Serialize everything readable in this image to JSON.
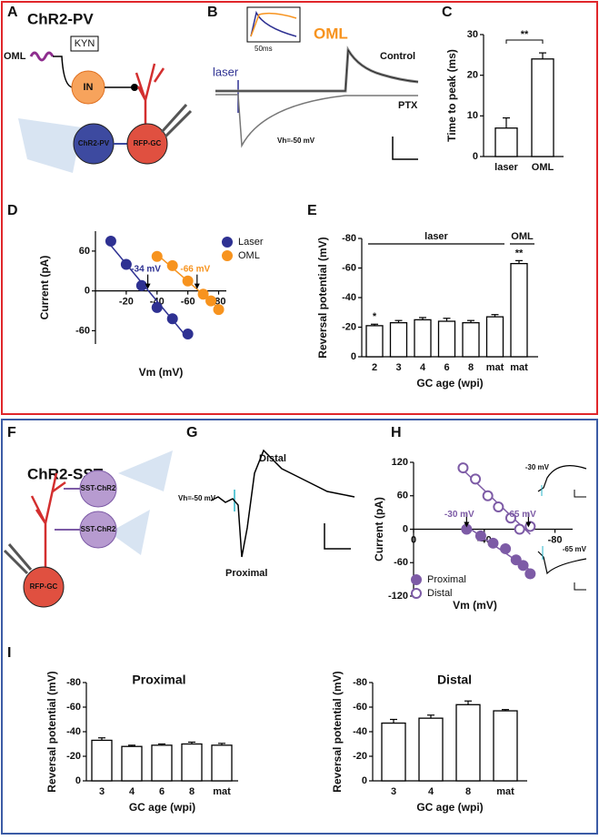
{
  "panel_labels": [
    "A",
    "B",
    "C",
    "D",
    "E",
    "F",
    "G",
    "H",
    "I"
  ],
  "diagram_a": {
    "title": "ChR2-PV",
    "oml": "OML",
    "kyn": "KYN",
    "in": "IN",
    "chr2": "ChR2-PV",
    "gc": "RFP-GC"
  },
  "trace_b": {
    "laser": "laser",
    "oml": "OML",
    "inset_scale": "50ms",
    "control": "Control",
    "ptx": "PTX",
    "vh": "Vh=-50 mV"
  },
  "diagram_f": {
    "title": "ChR2-SST",
    "sst_top": "SST-ChR2",
    "sst_bottom": "SST-ChR2",
    "gc": "RFP-GC"
  },
  "trace_g": {
    "distal": "Distal",
    "proximal": "Proximal",
    "vh": "Vh=-50 mV"
  },
  "chart_data": [
    {
      "type": "bar",
      "ylabel": "Time to peak (ms)",
      "categories": [
        "laser",
        "OML"
      ],
      "values": [
        7,
        24
      ],
      "errors": [
        2.5,
        1.5
      ],
      "ylim": [
        0,
        30
      ],
      "yticks": [
        0,
        10,
        20,
        30
      ],
      "annotations": [
        "**"
      ]
    },
    {
      "type": "scatter",
      "xlabel": "Vm (mV)",
      "ylabel": "Current (pA)",
      "xlim": [
        0,
        -85
      ],
      "xticks": [
        -20,
        -40,
        -60,
        -80
      ],
      "ylim": [
        -80,
        90
      ],
      "yticks": [
        60,
        0,
        -60
      ],
      "series": [
        {
          "name": "Laser",
          "color": "#2e3192",
          "marker": "filled",
          "x": [
            -10,
            -20,
            -30,
            -40,
            -50,
            -60
          ],
          "values": [
            75,
            40,
            8,
            -25,
            -42,
            -65
          ]
        },
        {
          "name": "OML",
          "color": "#f7931e",
          "marker": "filled",
          "x": [
            -40,
            -50,
            -60,
            -70,
            -75,
            -80
          ],
          "values": [
            52,
            38,
            15,
            -5,
            -15,
            -28
          ]
        }
      ],
      "annotations": [
        {
          "value": -34,
          "label": "-34 mV"
        },
        {
          "value": -66,
          "label": "-66 mV"
        }
      ]
    },
    {
      "type": "bar",
      "ylabel": "Reversal potential (mV)",
      "xlabel": "GC age (wpi)",
      "categories": [
        "2",
        "3",
        "4",
        "6",
        "8",
        "mat",
        "mat"
      ],
      "values": [
        -21,
        -23,
        -25,
        -24,
        -23,
        -27,
        -63
      ],
      "errors": [
        1,
        1.5,
        1.5,
        2,
        1.5,
        1.5,
        2
      ],
      "ylim": [
        0,
        -80
      ],
      "yticks": [
        0,
        -20,
        -40,
        -60,
        -80
      ],
      "groups": [
        "laser",
        "OML"
      ],
      "annotations": [
        "*",
        "**"
      ]
    },
    {
      "type": "scatter",
      "xlabel": "Vm (mV)",
      "ylabel": "Current (pA)",
      "xlim": [
        0,
        -90
      ],
      "xticks": [
        0,
        -40,
        -80
      ],
      "ylim": [
        -120,
        120
      ],
      "yticks": [
        120,
        60,
        0,
        -60,
        -120
      ],
      "series": [
        {
          "name": "Proximal",
          "color": "#7d5ba6",
          "marker": "filled",
          "x": [
            -30,
            -38,
            -45,
            -52,
            -58,
            -62,
            -66
          ],
          "values": [
            0,
            -12,
            -25,
            -35,
            -55,
            -65,
            -80
          ]
        },
        {
          "name": "Distal",
          "color": "#7d5ba6",
          "marker": "open",
          "x": [
            -28,
            -35,
            -42,
            -48,
            -55,
            -60,
            -66
          ],
          "values": [
            110,
            90,
            60,
            40,
            20,
            0,
            5
          ]
        }
      ],
      "annotations": [
        {
          "value": -30,
          "label": "-30 mV"
        },
        {
          "value": -65,
          "label": "-65 mV"
        }
      ],
      "inset_labels": [
        "-30 mV",
        "-65 mV"
      ]
    },
    {
      "type": "bar",
      "title": "Proximal",
      "ylabel": "Reversal potential (mV)",
      "xlabel": "GC age (wpi)",
      "categories": [
        "3",
        "4",
        "6",
        "8",
        "mat"
      ],
      "values": [
        -33,
        -28,
        -29,
        -30,
        -29
      ],
      "errors": [
        2,
        1,
        1,
        1.5,
        1.5
      ],
      "ylim": [
        0,
        -80
      ],
      "yticks": [
        0,
        -20,
        -40,
        -60,
        -80
      ]
    },
    {
      "type": "bar",
      "title": "Distal",
      "ylabel": "Reversal potential (mV)",
      "xlabel": "GC age (wpi)",
      "categories": [
        "3",
        "4",
        "8",
        "mat"
      ],
      "values": [
        -47,
        -51,
        -62,
        -57
      ],
      "errors": [
        3,
        2.5,
        3,
        1
      ],
      "ylim": [
        0,
        -80
      ],
      "yticks": [
        0,
        -20,
        -40,
        -60,
        -80
      ]
    }
  ]
}
